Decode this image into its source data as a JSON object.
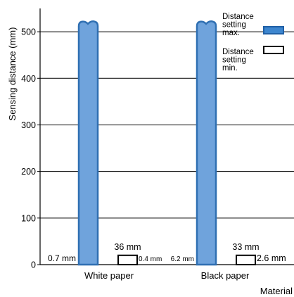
{
  "chart_data": {
    "type": "bar",
    "title": "",
    "xlabel": "Material",
    "ylabel": "Sensing distance  (mm)",
    "ylim": [
      0,
      550
    ],
    "yticks": [
      0,
      100,
      200,
      300,
      400,
      500
    ],
    "grid": true,
    "categories": [
      "White paper",
      "Black  paper"
    ],
    "series": [
      {
        "name": "Distance setting max.",
        "color": "#6fa3dc",
        "values": [
          520,
          520
        ],
        "value_labels": [
          "0.7 mm",
          "6.2 mm"
        ]
      },
      {
        "name": "Distance setting min.",
        "color": "#ffffff",
        "values": [
          20,
          20
        ],
        "value_labels": [
          "0.4 mm",
          "2.6 mm"
        ],
        "top_labels": [
          "36 mm",
          "33 mm"
        ]
      }
    ],
    "legend": {
      "position": "top-right",
      "items": [
        {
          "lines": [
            "Distance",
            "setting",
            "max."
          ],
          "color": "#3d86cf",
          "filled": true
        },
        {
          "lines": [
            "Distance",
            "setting",
            "min."
          ],
          "color": "#ffffff",
          "filled": false
        }
      ]
    }
  }
}
